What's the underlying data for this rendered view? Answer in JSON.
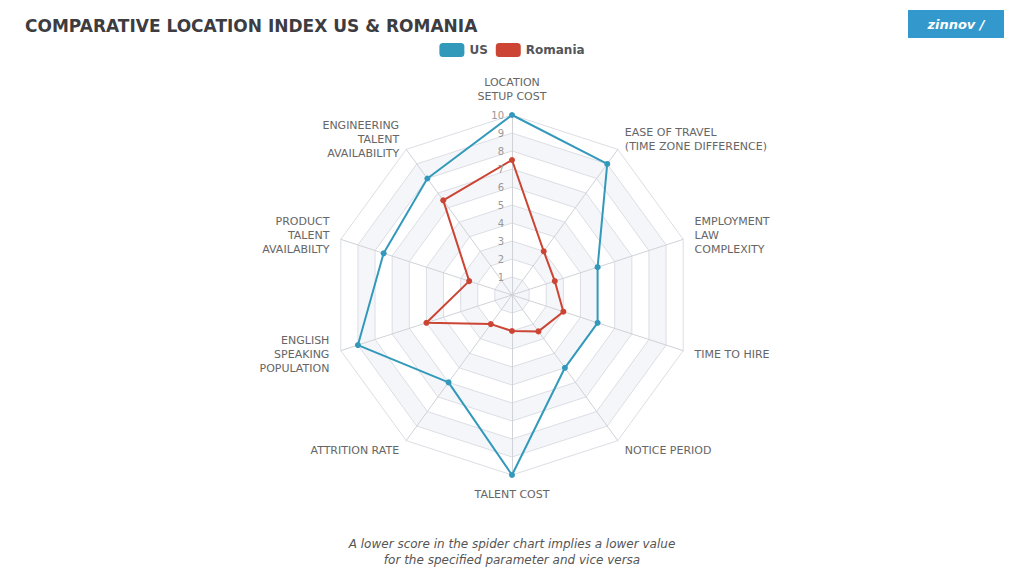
{
  "chart_data": {
    "type": "radar",
    "title": "COMPARATIVE LOCATION INDEX US & ROMANIA",
    "categories": [
      "LOCATION\nSETUP COST",
      "ENGINEERING\nTALENT\nAVAILABILITY",
      "PRODUCT\nTALENT\nAVAILABILTY",
      "ENGLISH\nSPEAKING\nPOPULATION",
      "ATTRITION RATE",
      "TALENT COST",
      "NOTICE PERIOD",
      "TIME TO HIRE",
      "EMPLOYMENT\nLAW\nCOMPLEXITY",
      "EASE OF TRAVEL\n(TIME ZONE DIFFERENCE)"
    ],
    "series": [
      {
        "name": "US",
        "color": "#3399BB",
        "values": [
          10,
          8,
          7.5,
          9,
          6,
          10,
          5,
          5,
          5,
          9
        ]
      },
      {
        "name": "Romania",
        "color": "#CC4433",
        "values": [
          7.5,
          6.5,
          2.5,
          5,
          2,
          2,
          2.5,
          3,
          2.5,
          3
        ]
      }
    ],
    "ylim": [
      0,
      10
    ],
    "yticks": [
      1,
      2,
      3,
      4,
      5,
      6,
      7,
      8,
      9,
      10
    ],
    "grid": true,
    "legend": "top",
    "marker": "circle",
    "annotations": [
      "A lower score in the spider chart implies a lower value\nfor the specified parameter and vice versa",
      "zinnov",
      "/"
    ]
  }
}
